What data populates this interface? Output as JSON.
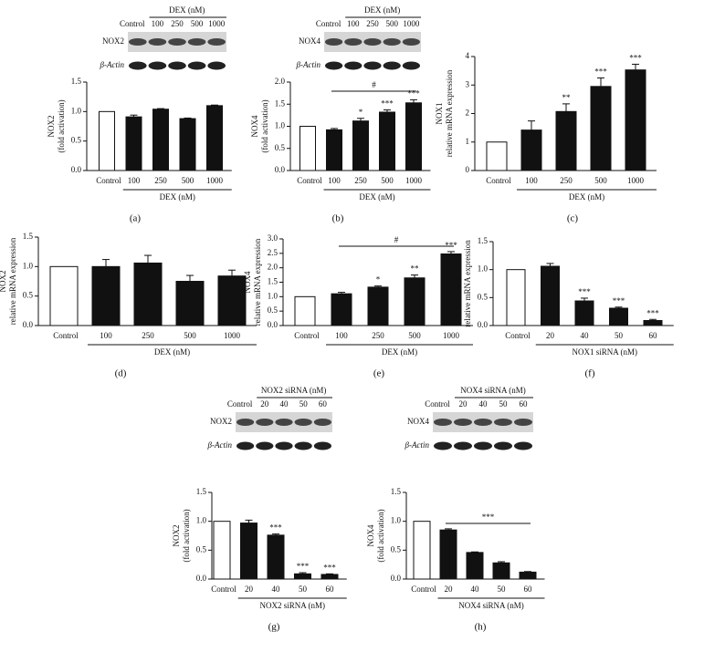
{
  "chart_data": [
    {
      "type": "bar",
      "panel": "(a)",
      "ylabel": [
        "NOX2",
        "(fold activation)"
      ],
      "xlabel": "DEX (nM)",
      "categories": [
        "Control",
        "100",
        "250",
        "500",
        "1000"
      ],
      "values": [
        1.0,
        0.91,
        1.04,
        0.88,
        1.1
      ],
      "errors": [
        null,
        0.03,
        0.01,
        0.01,
        0.01
      ],
      "significance": [
        null,
        null,
        null,
        null,
        null
      ],
      "colors": [
        "#ffffff",
        "#111111",
        "#111111",
        "#111111",
        "#111111"
      ],
      "ylim": [
        0,
        1.5
      ],
      "yticks": [
        {
          "value": 0,
          "label": "0.0"
        },
        {
          "value": 0.5,
          "label": "0.5"
        },
        {
          "value": 1,
          "label": "1.0"
        },
        {
          "value": 1.5,
          "label": "1.5"
        }
      ],
      "blot": {
        "header": "DEX (nM)",
        "lanes": [
          "Control",
          "100",
          "250",
          "500",
          "1000"
        ],
        "rows": [
          "NOX2",
          "β-Actin"
        ]
      }
    },
    {
      "type": "bar",
      "panel": "(b)",
      "ylabel": [
        "NOX4",
        "(fold activation)"
      ],
      "xlabel": "DEX (nM)",
      "categories": [
        "Control",
        "100",
        "250",
        "500",
        "1000"
      ],
      "values": [
        1.0,
        0.92,
        1.12,
        1.32,
        1.53
      ],
      "errors": [
        null,
        0.03,
        0.06,
        0.05,
        0.07
      ],
      "significance": [
        null,
        null,
        "*",
        "***",
        "***"
      ],
      "colors": [
        "#ffffff",
        "#111111",
        "#111111",
        "#111111",
        "#111111"
      ],
      "bracket": {
        "text": "#",
        "span": [
          1,
          4
        ]
      },
      "ylim": [
        0,
        2
      ],
      "yticks": [
        {
          "value": 0,
          "label": "0.0"
        },
        {
          "value": 0.5,
          "label": "0.5"
        },
        {
          "value": 1,
          "label": "1.0"
        },
        {
          "value": 1.5,
          "label": "1.5"
        },
        {
          "value": 2,
          "label": "2.0"
        }
      ],
      "blot": {
        "header": "DEX (nM)",
        "lanes": [
          "Control",
          "100",
          "250",
          "500",
          "1000"
        ],
        "rows": [
          "NOX4",
          "β-Actin"
        ]
      }
    },
    {
      "type": "bar",
      "panel": "(c)",
      "ylabel": [
        "NOX1",
        "relative mRNA expression"
      ],
      "xlabel": "DEX (nM)",
      "categories": [
        "Control",
        "100",
        "250",
        "500",
        "1000"
      ],
      "values": [
        1.0,
        1.42,
        2.07,
        2.95,
        3.53
      ],
      "errors": [
        null,
        0.32,
        0.27,
        0.3,
        0.2
      ],
      "significance": [
        null,
        null,
        "**",
        "***",
        "***"
      ],
      "colors": [
        "#ffffff",
        "#111111",
        "#111111",
        "#111111",
        "#111111"
      ],
      "ylim": [
        0,
        4
      ],
      "yticks": [
        0,
        1,
        2,
        3,
        4
      ]
    },
    {
      "type": "bar",
      "panel": "(d)",
      "ylabel": [
        "NOX2",
        "relative mRNA expression"
      ],
      "xlabel": "DEX (nM)",
      "categories": [
        "Control",
        "100",
        "250",
        "500",
        "1000"
      ],
      "values": [
        1.0,
        1.0,
        1.06,
        0.75,
        0.84
      ],
      "errors": [
        null,
        0.12,
        0.13,
        0.1,
        0.1
      ],
      "significance": [
        null,
        null,
        null,
        null,
        null
      ],
      "colors": [
        "#ffffff",
        "#111111",
        "#111111",
        "#111111",
        "#111111"
      ],
      "ylim": [
        0,
        1.5
      ],
      "yticks": [
        {
          "value": 0,
          "label": "0.0"
        },
        {
          "value": 0.5,
          "label": "0.5"
        },
        {
          "value": 1,
          "label": "1.0"
        },
        {
          "value": 1.5,
          "label": "1.5"
        }
      ]
    },
    {
      "type": "bar",
      "panel": "(e)",
      "ylabel": [
        "NOX4",
        "relative mRNA expression"
      ],
      "xlabel": "DEX (nM)",
      "categories": [
        "Control",
        "100",
        "250",
        "500",
        "1000"
      ],
      "values": [
        1.0,
        1.1,
        1.33,
        1.65,
        2.48
      ],
      "errors": [
        null,
        0.05,
        0.04,
        0.1,
        0.08
      ],
      "significance": [
        null,
        null,
        "*",
        "**",
        "***"
      ],
      "colors": [
        "#ffffff",
        "#111111",
        "#111111",
        "#111111",
        "#111111"
      ],
      "bracket": {
        "text": "#",
        "span": [
          1,
          4
        ]
      },
      "ylim": [
        0,
        3
      ],
      "yticks": [
        {
          "value": 0,
          "label": "0.0"
        },
        {
          "value": 0.5,
          "label": "0.5"
        },
        {
          "value": 1,
          "label": "1.0"
        },
        {
          "value": 1.5,
          "label": "1.5"
        },
        {
          "value": 2,
          "label": "2.0"
        },
        {
          "value": 2.5,
          "label": "2.5"
        },
        {
          "value": 3,
          "label": "3.0"
        }
      ]
    },
    {
      "type": "bar",
      "panel": "(f)",
      "ylabel": [
        "NOX1",
        "relative mRNA expression"
      ],
      "xlabel": "NOX1 siRNA (nM)",
      "categories": [
        "Control",
        "20",
        "40",
        "50",
        "60"
      ],
      "values": [
        1.0,
        1.06,
        0.44,
        0.31,
        0.09
      ],
      "errors": [
        null,
        0.05,
        0.05,
        0.02,
        0.02
      ],
      "significance": [
        null,
        null,
        "***",
        "***",
        "***"
      ],
      "colors": [
        "#ffffff",
        "#111111",
        "#111111",
        "#111111",
        "#111111"
      ],
      "ylim": [
        0,
        1.5
      ],
      "yticks": [
        {
          "value": 0,
          "label": "0.0"
        },
        {
          "value": 0.5,
          "label": "0.5"
        },
        {
          "value": 1,
          "label": "1.0"
        },
        {
          "value": 1.5,
          "label": "1.5"
        }
      ]
    },
    {
      "type": "bar",
      "panel": "(g)",
      "ylabel": [
        "NOX2",
        "(fold activation)"
      ],
      "xlabel": "NOX2 siRNA (nM)",
      "categories": [
        "Control",
        "20",
        "40",
        "50",
        "60"
      ],
      "values": [
        1.0,
        0.97,
        0.76,
        0.09,
        0.08
      ],
      "errors": [
        null,
        0.05,
        0.02,
        0.02,
        0.01
      ],
      "significance": [
        null,
        null,
        "***",
        "***",
        "***"
      ],
      "colors": [
        "#ffffff",
        "#111111",
        "#111111",
        "#111111",
        "#111111"
      ],
      "ylim": [
        0,
        1.5
      ],
      "yticks": [
        {
          "value": 0,
          "label": "0.0"
        },
        {
          "value": 0.5,
          "label": "0.5"
        },
        {
          "value": 1,
          "label": "1.0"
        },
        {
          "value": 1.5,
          "label": "1.5"
        }
      ],
      "blot": {
        "header": "NOX2 siRNA (nM)",
        "lanes": [
          "Control",
          "20",
          "40",
          "50",
          "60"
        ],
        "rows": [
          "NOX2",
          "β-Actin"
        ]
      }
    },
    {
      "type": "bar",
      "panel": "(h)",
      "ylabel": [
        "NOX4",
        "(fold activation)"
      ],
      "xlabel": "NOX4 siRNA (nM)",
      "categories": [
        "Control",
        "20",
        "40",
        "50",
        "60"
      ],
      "values": [
        1.0,
        0.85,
        0.46,
        0.28,
        0.12
      ],
      "errors": [
        null,
        0.02,
        0.01,
        0.02,
        0.01
      ],
      "significance": [
        null,
        null,
        null,
        null,
        null
      ],
      "colors": [
        "#ffffff",
        "#111111",
        "#111111",
        "#111111",
        "#111111"
      ],
      "bracket": {
        "text": "***",
        "span": [
          1,
          4
        ]
      },
      "ylim": [
        0,
        1.5
      ],
      "yticks": [
        {
          "value": 0,
          "label": "0.0"
        },
        {
          "value": 0.5,
          "label": "0.5"
        },
        {
          "value": 1,
          "label": "1.0"
        },
        {
          "value": 1.5,
          "label": "1.5"
        }
      ],
      "blot": {
        "header": "NOX4 siRNA (nM)",
        "lanes": [
          "Control",
          "20",
          "40",
          "50",
          "60"
        ],
        "rows": [
          "NOX4",
          "β-Actin"
        ]
      }
    }
  ]
}
